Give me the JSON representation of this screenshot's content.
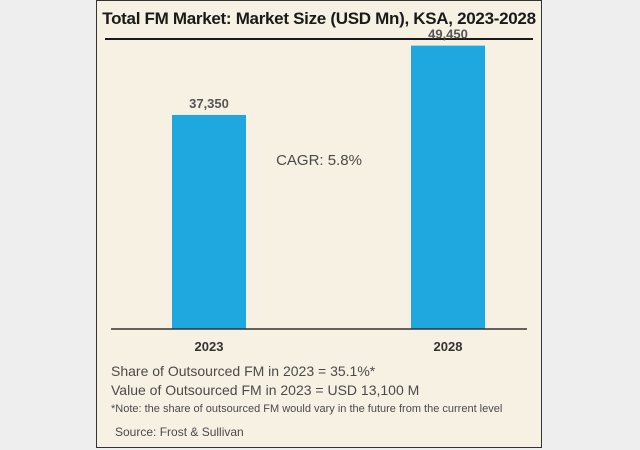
{
  "chart_data": {
    "type": "bar",
    "title": "Total FM Market: Market Size (USD Mn), KSA, 2023-2028",
    "categories": [
      "2023",
      "2028"
    ],
    "values": [
      37350,
      49450
    ],
    "value_labels": [
      "37,350",
      "49,450"
    ],
    "annotation": "CAGR: 5.8%",
    "ylim": [
      0,
      52000
    ],
    "grid": false,
    "legend": "none",
    "bar_color": "#1ea8df"
  },
  "notes": {
    "line1": "Share of Outsourced FM in 2023 = 35.1%*",
    "line2": "Value of Outsourced FM in 2023 = USD 13,100 M",
    "footnote": "*Note: the share of outsourced FM would vary in the future from the current level"
  },
  "source": "Source: Frost & Sullivan",
  "colors": {
    "panel_bg": "#f7f1e3",
    "text": "#4a4a4a",
    "page_bg": "#eeeeee"
  }
}
